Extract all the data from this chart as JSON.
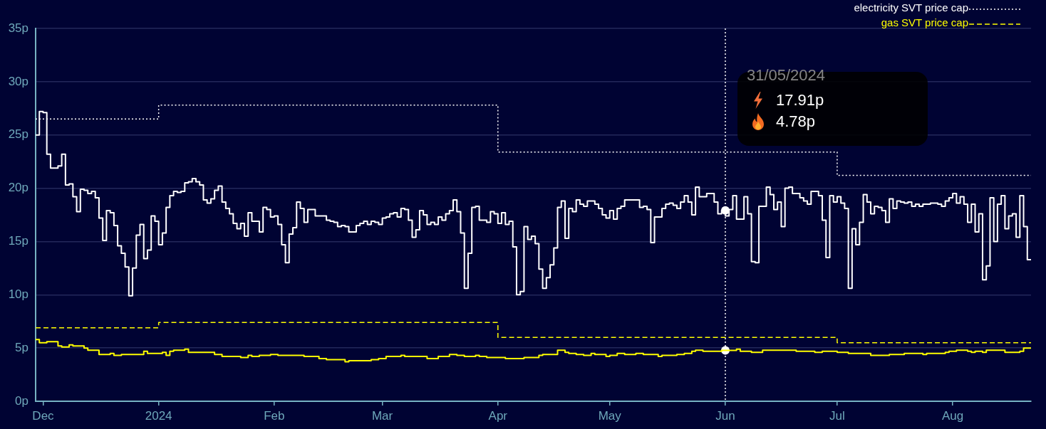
{
  "chart_data": {
    "type": "step",
    "x": [
      "2023-11-29",
      "2023-11-30",
      "2023-12-01",
      "2023-12-02",
      "2023-12-03",
      "2023-12-04",
      "2023-12-05",
      "2023-12-06",
      "2023-12-07",
      "2023-12-08",
      "2023-12-09",
      "2023-12-10",
      "2023-12-11",
      "2023-12-12",
      "2023-12-13",
      "2023-12-14",
      "2023-12-15",
      "2023-12-16",
      "2023-12-17",
      "2023-12-18",
      "2023-12-19",
      "2023-12-20",
      "2023-12-21",
      "2023-12-22",
      "2023-12-23",
      "2023-12-24",
      "2023-12-25",
      "2023-12-26",
      "2023-12-27",
      "2023-12-28",
      "2023-12-29",
      "2023-12-30",
      "2023-12-31",
      "2024-01-01",
      "2024-01-02",
      "2024-01-03",
      "2024-01-04",
      "2024-01-05",
      "2024-01-06",
      "2024-01-07",
      "2024-01-08",
      "2024-01-09",
      "2024-01-10",
      "2024-01-11",
      "2024-01-12",
      "2024-01-13",
      "2024-01-14",
      "2024-01-15",
      "2024-01-16",
      "2024-01-17",
      "2024-01-18",
      "2024-01-19",
      "2024-01-20",
      "2024-01-21",
      "2024-01-22",
      "2024-01-23",
      "2024-01-24",
      "2024-01-25",
      "2024-01-26",
      "2024-01-27",
      "2024-01-28",
      "2024-01-29",
      "2024-01-30",
      "2024-01-31",
      "2024-02-01",
      "2024-02-02",
      "2024-02-03",
      "2024-02-04",
      "2024-02-05",
      "2024-02-06",
      "2024-02-07",
      "2024-02-08",
      "2024-02-09",
      "2024-02-10",
      "2024-02-11",
      "2024-02-12",
      "2024-02-13",
      "2024-02-14",
      "2024-02-15",
      "2024-02-16",
      "2024-02-17",
      "2024-02-18",
      "2024-02-19",
      "2024-02-20",
      "2024-02-21",
      "2024-02-22",
      "2024-02-23",
      "2024-02-24",
      "2024-02-25",
      "2024-02-26",
      "2024-02-27",
      "2024-02-28",
      "2024-02-29",
      "2024-03-01",
      "2024-03-02",
      "2024-03-03",
      "2024-03-04",
      "2024-03-05",
      "2024-03-06",
      "2024-03-07",
      "2024-03-08",
      "2024-03-09",
      "2024-03-10",
      "2024-03-11",
      "2024-03-12",
      "2024-03-13",
      "2024-03-14",
      "2024-03-15",
      "2024-03-16",
      "2024-03-17",
      "2024-03-18",
      "2024-03-19",
      "2024-03-20",
      "2024-03-21",
      "2024-03-22",
      "2024-03-23",
      "2024-03-24",
      "2024-03-25",
      "2024-03-26",
      "2024-03-27",
      "2024-03-28",
      "2024-03-29",
      "2024-03-30",
      "2024-03-31",
      "2024-04-01",
      "2024-04-02",
      "2024-04-03",
      "2024-04-04",
      "2024-04-05",
      "2024-04-06",
      "2024-04-07",
      "2024-04-08",
      "2024-04-09",
      "2024-04-10",
      "2024-04-11",
      "2024-04-12",
      "2024-04-13",
      "2024-04-14",
      "2024-04-15",
      "2024-04-16",
      "2024-04-17",
      "2024-04-18",
      "2024-04-19",
      "2024-04-20",
      "2024-04-21",
      "2024-04-22",
      "2024-04-23",
      "2024-04-24",
      "2024-04-25",
      "2024-04-26",
      "2024-04-27",
      "2024-04-28",
      "2024-04-29",
      "2024-04-30",
      "2024-05-01",
      "2024-05-02",
      "2024-05-03",
      "2024-05-04",
      "2024-05-05",
      "2024-05-06",
      "2024-05-07",
      "2024-05-08",
      "2024-05-09",
      "2024-05-10",
      "2024-05-11",
      "2024-05-12",
      "2024-05-13",
      "2024-05-14",
      "2024-05-15",
      "2024-05-16",
      "2024-05-17",
      "2024-05-18",
      "2024-05-19",
      "2024-05-20",
      "2024-05-21",
      "2024-05-22",
      "2024-05-23",
      "2024-05-24",
      "2024-05-25",
      "2024-05-26",
      "2024-05-27",
      "2024-05-28",
      "2024-05-29",
      "2024-05-30",
      "2024-05-31",
      "2024-06-01",
      "2024-06-02",
      "2024-06-03",
      "2024-06-04",
      "2024-06-05",
      "2024-06-06",
      "2024-06-07",
      "2024-06-08",
      "2024-06-09",
      "2024-06-10",
      "2024-06-11",
      "2024-06-12",
      "2024-06-13",
      "2024-06-14",
      "2024-06-15",
      "2024-06-16",
      "2024-06-17",
      "2024-06-18",
      "2024-06-19",
      "2024-06-20",
      "2024-06-21",
      "2024-06-22",
      "2024-06-23",
      "2024-06-24",
      "2024-06-25",
      "2024-06-26",
      "2024-06-27",
      "2024-06-28",
      "2024-06-29",
      "2024-06-30",
      "2024-07-01",
      "2024-07-02",
      "2024-07-03",
      "2024-07-04",
      "2024-07-05",
      "2024-07-06",
      "2024-07-07",
      "2024-07-08",
      "2024-07-09",
      "2024-07-10",
      "2024-07-11",
      "2024-07-12",
      "2024-07-13",
      "2024-07-14",
      "2024-07-15",
      "2024-07-16",
      "2024-07-17",
      "2024-07-18",
      "2024-07-19",
      "2024-07-20",
      "2024-07-21",
      "2024-07-22",
      "2024-07-23",
      "2024-07-24",
      "2024-07-25",
      "2024-07-26",
      "2024-07-27",
      "2024-07-28",
      "2024-07-29",
      "2024-07-30",
      "2024-07-31",
      "2024-08-01",
      "2024-08-02",
      "2024-08-03",
      "2024-08-04",
      "2024-08-05",
      "2024-08-06",
      "2024-08-07",
      "2024-08-08",
      "2024-08-09",
      "2024-08-10",
      "2024-08-11",
      "2024-08-12",
      "2024-08-13",
      "2024-08-14",
      "2024-08-15",
      "2024-08-16",
      "2024-08-17",
      "2024-08-18",
      "2024-08-19",
      "2024-08-20",
      "2024-08-21",
      "2024-08-22"
    ],
    "series": [
      {
        "color": "#ffffff",
        "values": [
          25.0,
          27.2,
          27.1,
          23.2,
          21.9,
          21.9,
          22.1,
          23.2,
          20.3,
          20.4,
          19.2,
          17.8,
          19.9,
          19.8,
          19.5,
          19.7,
          19.1,
          17.2,
          15.1,
          17.9,
          17.7,
          16.5,
          14.6,
          13.9,
          12.6,
          9.9,
          12.5,
          15.6,
          16.6,
          13.4,
          14.2,
          17.4,
          16.9,
          14.7,
          15.8,
          18.2,
          19.3,
          19.7,
          19.6,
          19.7,
          20.5,
          20.6,
          20.9,
          20.6,
          20.3,
          18.9,
          18.6,
          19.0,
          19.8,
          20.2,
          18.7,
          18.1,
          17.6,
          16.7,
          16.2,
          16.7,
          15.5,
          17.7,
          16.9,
          16.9,
          15.9,
          18.2,
          18.0,
          17.3,
          17.4,
          16.6,
          14.7,
          13.0,
          15.7,
          16.3,
          18.7,
          18.1,
          16.8,
          18.0,
          18.0,
          17.4,
          17.4,
          17.4,
          17.0,
          16.9,
          16.8,
          16.4,
          16.5,
          16.4,
          15.9,
          15.9,
          16.5,
          16.7,
          16.9,
          16.6,
          16.9,
          16.8,
          16.6,
          17.2,
          17.3,
          17.6,
          17.7,
          17.3,
          18.1,
          18.0,
          17.0,
          15.4,
          16.1,
          17.9,
          17.5,
          16.6,
          16.8,
          16.6,
          17.3,
          17.0,
          17.6,
          17.9,
          18.9,
          17.8,
          15.8,
          10.6,
          13.9,
          18.2,
          18.3,
          17.0,
          17.0,
          16.8,
          17.8,
          17.6,
          16.7,
          17.7,
          16.6,
          16.9,
          14.5,
          10.0,
          10.3,
          16.4,
          15.2,
          15.5,
          14.8,
          12.4,
          10.6,
          11.6,
          12.8,
          14.4,
          18.2,
          18.8,
          15.3,
          18.1,
          17.8,
          18.9,
          18.5,
          18.3,
          18.8,
          18.8,
          18.5,
          18.1,
          17.5,
          17.2,
          17.9,
          17.1,
          18.1,
          18.3,
          18.9,
          18.9,
          18.9,
          18.9,
          18.2,
          18.3,
          18.0,
          14.9,
          17.3,
          17.3,
          18.1,
          18.5,
          18.6,
          18.4,
          18.1,
          18.7,
          19.3,
          18.7,
          17.5,
          20.1,
          19.2,
          19.2,
          19.5,
          19.5,
          18.7,
          17.6,
          17.91,
          17.4,
          18.0,
          19.3,
          17.1,
          17.1,
          19.2,
          17.6,
          13.1,
          13.0,
          18.3,
          18.3,
          20.1,
          19.4,
          18.0,
          18.7,
          16.4,
          20.0,
          20.1,
          19.5,
          19.5,
          19.1,
          18.8,
          18.5,
          19.7,
          19.7,
          19.3,
          17.0,
          13.5,
          19.3,
          18.7,
          19.2,
          18.6,
          18.1,
          10.6,
          16.2,
          14.7,
          16.8,
          19.4,
          18.7,
          17.6,
          18.3,
          18.2,
          17.9,
          16.8,
          19.0,
          18.1,
          18.8,
          18.7,
          18.6,
          18.7,
          18.3,
          18.5,
          18.3,
          18.5,
          18.5,
          18.6,
          18.6,
          18.5,
          18.3,
          18.8,
          19.1,
          19.5,
          18.6,
          19.2,
          18.5,
          16.8,
          18.5,
          15.9,
          17.6,
          11.4,
          12.7,
          19.1,
          15.0,
          18.5,
          19.3,
          16.2,
          17.4,
          17.6,
          15.4,
          19.3,
          16.4,
          13.3,
          13.3
        ]
      },
      {
        "color": "#ffff00",
        "x": [
          "2023-11-29",
          "2023-11-30",
          "2023-12-02",
          "2023-12-05",
          "2023-12-06",
          "2023-12-08",
          "2023-12-09",
          "2023-12-12",
          "2023-12-13",
          "2023-12-16",
          "2023-12-19",
          "2023-12-20",
          "2023-12-22",
          "2023-12-28",
          "2023-12-29",
          "2024-01-02",
          "2024-01-03",
          "2024-01-04",
          "2024-01-05",
          "2024-01-08",
          "2024-01-09",
          "2024-01-16",
          "2024-01-18",
          "2024-01-23",
          "2024-01-25",
          "2024-01-26",
          "2024-01-28",
          "2024-01-31",
          "2024-02-02",
          "2024-02-09",
          "2024-02-13",
          "2024-02-15",
          "2024-02-20",
          "2024-02-21",
          "2024-02-27",
          "2024-02-29",
          "2024-03-02",
          "2024-03-06",
          "2024-03-07",
          "2024-03-13",
          "2024-03-16",
          "2024-03-19",
          "2024-03-21",
          "2024-03-23",
          "2024-03-26",
          "2024-03-27",
          "2024-03-29",
          "2024-04-03",
          "2024-04-08",
          "2024-04-12",
          "2024-04-13",
          "2024-04-17",
          "2024-04-19",
          "2024-04-20",
          "2024-04-22",
          "2024-04-24",
          "2024-04-26",
          "2024-04-27",
          "2024-04-30",
          "2024-05-01",
          "2024-05-03",
          "2024-05-05",
          "2024-05-08",
          "2024-05-10",
          "2024-05-14",
          "2024-05-15",
          "2024-05-19",
          "2024-05-21",
          "2024-05-23",
          "2024-05-24",
          "2024-05-26",
          "2024-05-31",
          "2024-06-04",
          "2024-06-05",
          "2024-06-08",
          "2024-06-11",
          "2024-06-20",
          "2024-06-25",
          "2024-06-27",
          "2024-07-01",
          "2024-07-04",
          "2024-07-10",
          "2024-07-15",
          "2024-07-19",
          "2024-07-24",
          "2024-07-25",
          "2024-07-30",
          "2024-07-31",
          "2024-08-02",
          "2024-08-05",
          "2024-08-06",
          "2024-08-07",
          "2024-08-09",
          "2024-08-10",
          "2024-08-15",
          "2024-08-19",
          "2024-08-20",
          "2024-08-22"
        ],
        "values": [
          5.8,
          5.5,
          5.6,
          5.2,
          5.1,
          5.3,
          5.2,
          5.0,
          4.8,
          4.4,
          4.5,
          4.3,
          4.4,
          4.7,
          4.5,
          4.6,
          4.3,
          4.7,
          4.8,
          4.9,
          4.6,
          4.4,
          4.2,
          4.1,
          4.3,
          4.2,
          4.3,
          4.4,
          4.3,
          4.2,
          4.0,
          3.9,
          3.7,
          3.8,
          3.9,
          4.0,
          4.2,
          4.3,
          4.2,
          4.0,
          4.2,
          4.4,
          4.3,
          4.2,
          4.3,
          4.2,
          4.1,
          4.0,
          4.1,
          4.3,
          4.4,
          4.8,
          4.6,
          4.5,
          4.4,
          4.3,
          4.5,
          4.4,
          4.2,
          4.3,
          4.5,
          4.4,
          4.5,
          4.4,
          4.2,
          4.3,
          4.4,
          4.5,
          4.7,
          4.8,
          4.7,
          4.78,
          4.9,
          4.7,
          4.6,
          4.8,
          4.7,
          4.6,
          4.7,
          4.6,
          4.5,
          4.3,
          4.4,
          4.5,
          4.4,
          4.5,
          4.6,
          4.7,
          4.8,
          4.7,
          4.6,
          4.7,
          4.6,
          4.8,
          4.6,
          4.7,
          5.0,
          5.0
        ]
      },
      {
        "name": "electricity SVT price cap",
        "color": "#ffffff",
        "line_style": "dotted",
        "x": [
          "2023-11-29",
          "2024-01-01",
          "2024-04-01",
          "2024-07-01",
          "2024-08-22"
        ],
        "values": [
          26.5,
          27.8,
          23.4,
          21.2,
          21.2
        ]
      },
      {
        "name": "gas SVT price cap",
        "color": "#ffff00",
        "line_style": "dashed",
        "x": [
          "2023-11-29",
          "2024-01-01",
          "2024-04-01",
          "2024-07-01",
          "2024-08-22"
        ],
        "values": [
          6.9,
          7.4,
          6.0,
          5.5,
          5.5
        ]
      },
      {
        "type": "scatter",
        "color": "#ffffff",
        "marker": "circle",
        "x": [
          "2024-06-01",
          "2024-06-01"
        ],
        "values": [
          17.91,
          4.78
        ]
      }
    ],
    "xlim": [
      "2023-11-29",
      "2024-08-22"
    ],
    "xticks": [
      {
        "value": "2023-12-01",
        "label": "Dec"
      },
      {
        "value": "2024-01-01",
        "label": "2024"
      },
      {
        "value": "2024-02-01",
        "label": "Feb"
      },
      {
        "value": "2024-03-01",
        "label": "Mar"
      },
      {
        "value": "2024-04-01",
        "label": "Apr"
      },
      {
        "value": "2024-05-01",
        "label": "May"
      },
      {
        "value": "2024-06-01",
        "label": "Jun"
      },
      {
        "value": "2024-07-01",
        "label": "Jul"
      },
      {
        "value": "2024-08-01",
        "label": "Aug"
      }
    ],
    "ylim": [
      0,
      35
    ],
    "yticks": [
      {
        "value": 0,
        "label": "0p"
      },
      {
        "value": 5,
        "label": "5p"
      },
      {
        "value": 10,
        "label": "10p"
      },
      {
        "value": 15,
        "label": "15p"
      },
      {
        "value": 20,
        "label": "20p"
      },
      {
        "value": 25,
        "label": "25p"
      },
      {
        "value": 30,
        "label": "30p"
      },
      {
        "value": 35,
        "label": "35p"
      }
    ],
    "grid": "y",
    "legend": "top right",
    "ref_lines": [
      {
        "axis": "x",
        "value": "2024-06-01",
        "label": "31/05/2024",
        "color": "#ffffff",
        "line_style": "dotted"
      }
    ],
    "annotations": [
      "17.91p",
      "4.78p"
    ]
  }
}
